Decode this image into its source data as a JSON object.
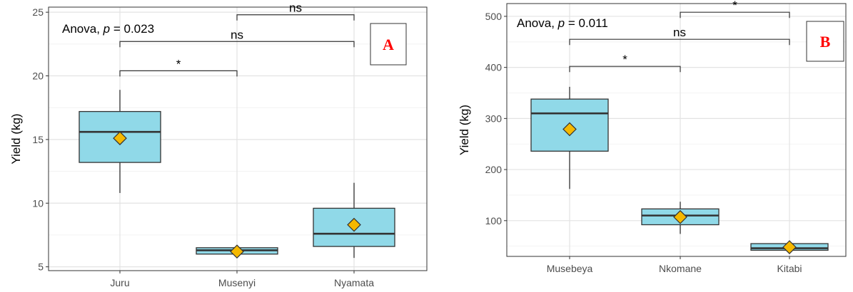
{
  "chart_data": [
    {
      "type": "box",
      "panel_label": "A",
      "ylabel": "Yield (kg)",
      "xlabel": "",
      "ylim": [
        4.7,
        25.4
      ],
      "yticks": [
        5,
        10,
        15,
        20,
        25
      ],
      "grid": true,
      "stat_label_prefix": "Anova, ",
      "stat_label_p": "p",
      "stat_label_value": " = 0.023",
      "box_fill": "#90d9e8",
      "mean_marker_fill": "#f5b800",
      "categories": [
        "Juru",
        "Musenyi",
        "Nyamata"
      ],
      "boxes": [
        {
          "category": "Juru",
          "whisker_low": 10.8,
          "q1": 13.2,
          "median": 15.6,
          "q3": 17.2,
          "whisker_high": 18.9,
          "mean": 15.1
        },
        {
          "category": "Musenyi",
          "whisker_low": 6.0,
          "q1": 6.0,
          "median": 6.3,
          "q3": 6.5,
          "whisker_high": 6.5,
          "mean": 6.2
        },
        {
          "category": "Nyamata",
          "whisker_low": 5.7,
          "q1": 6.6,
          "median": 7.6,
          "q3": 9.6,
          "whisker_high": 11.6,
          "mean": 8.3
        }
      ],
      "comparisons": [
        {
          "from": "Juru",
          "to": "Musenyi",
          "label": "*",
          "y": 20.4
        },
        {
          "from": "Juru",
          "to": "Nyamata",
          "label": "ns",
          "y": 22.7
        },
        {
          "from": "Musenyi",
          "to": "Nyamata",
          "label": "ns",
          "y": 24.8
        }
      ]
    },
    {
      "type": "box",
      "panel_label": "B",
      "ylabel": "Yield (kg)",
      "xlabel": "",
      "ylim": [
        30,
        525
      ],
      "yticks": [
        100,
        200,
        300,
        400,
        500
      ],
      "grid": true,
      "stat_label_prefix": "Anova, ",
      "stat_label_p": "p",
      "stat_label_value": " = 0.011",
      "box_fill": "#90d9e8",
      "mean_marker_fill": "#f5b800",
      "categories": [
        "Musebeya",
        "Nkomane",
        "Kitabi"
      ],
      "boxes": [
        {
          "category": "Musebeya",
          "whisker_low": 162,
          "q1": 236,
          "median": 310,
          "q3": 338,
          "whisker_high": 362,
          "mean": 279
        },
        {
          "category": "Nkomane",
          "whisker_low": 74,
          "q1": 92,
          "median": 110,
          "q3": 123,
          "whisker_high": 137,
          "mean": 107
        },
        {
          "category": "Kitabi",
          "whisker_low": 42,
          "q1": 42,
          "median": 46,
          "q3": 55,
          "whisker_high": 55,
          "mean": 48
        }
      ],
      "comparisons": [
        {
          "from": "Musebeya",
          "to": "Nkomane",
          "label": "*",
          "y": 402
        },
        {
          "from": "Musebeya",
          "to": "Kitabi",
          "label": "ns",
          "y": 455
        },
        {
          "from": "Nkomane",
          "to": "Kitabi",
          "label": "*",
          "y": 508
        }
      ]
    }
  ]
}
